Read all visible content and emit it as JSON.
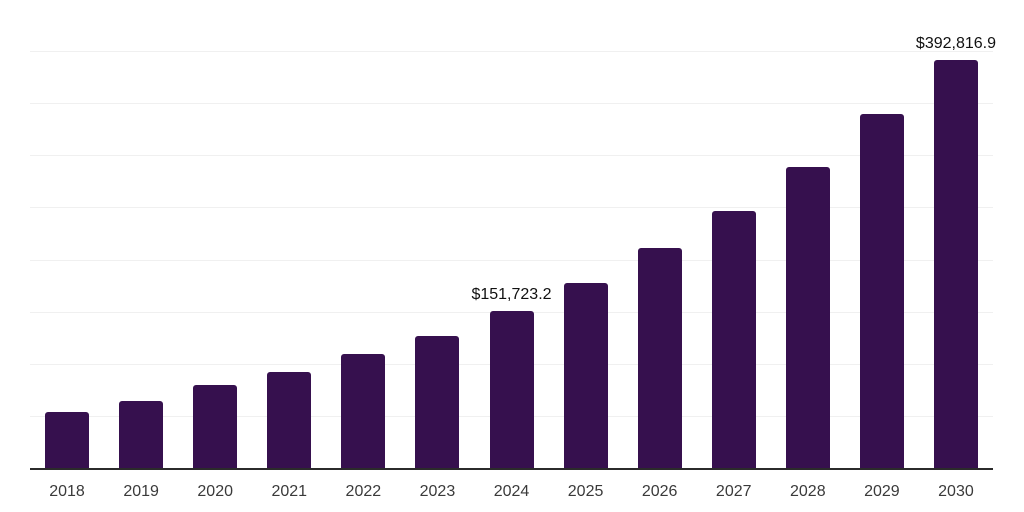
{
  "chart_data": {
    "type": "bar",
    "title": "",
    "xlabel": "",
    "ylabel": "",
    "categories": [
      "2018",
      "2019",
      "2020",
      "2021",
      "2022",
      "2023",
      "2024",
      "2025",
      "2026",
      "2027",
      "2028",
      "2029",
      "2030"
    ],
    "values": [
      55100,
      65600,
      81000,
      93400,
      110700,
      128000,
      151723.2,
      178800,
      212300,
      247800,
      290000,
      340700,
      392816.9
    ],
    "value_labels": {
      "2024": "$151,723.2",
      "2030": "$392,816.9"
    },
    "ylim": [
      0,
      450000
    ],
    "grid_step": 50000,
    "grid": "horizontal",
    "legend": "none",
    "colors": {
      "bar": "#36104e",
      "gridline": "#f0f0f0",
      "axis_line": "#2b2b2b",
      "tick_label": "#3a3a3a",
      "value_label": "#111111",
      "background": "#ffffff"
    }
  }
}
